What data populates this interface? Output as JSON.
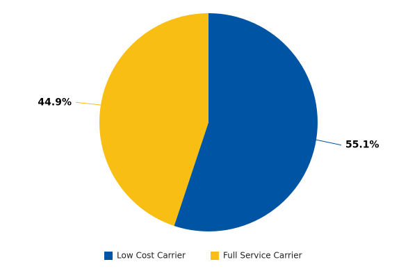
{
  "chart_data": {
    "type": "pie",
    "categories": [
      "Low Cost Carrier",
      "Full Service Carrier"
    ],
    "values": [
      55.1,
      44.9
    ],
    "value_labels": [
      "55.1%",
      "44.9%"
    ],
    "colors": [
      "#0054a4",
      "#f9be14"
    ],
    "legend": "bottom"
  }
}
